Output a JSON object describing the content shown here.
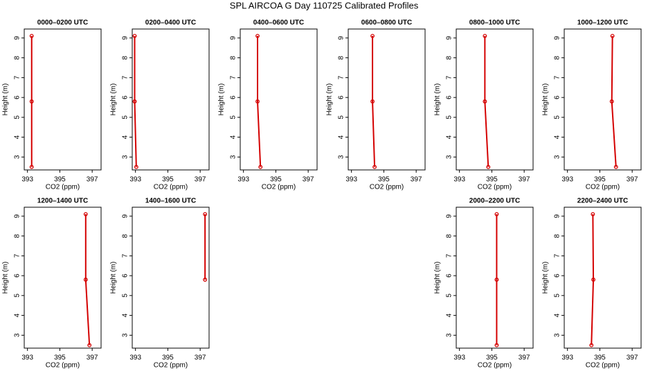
{
  "title": "SPL AIRCOA G  Day 110725  Calibrated Profiles",
  "chart_data": [
    {
      "type": "line",
      "title": "0000–0200 UTC",
      "xlabel": "CO2 (ppm)",
      "ylabel": "Height (m)",
      "x": [
        393.26,
        393.26,
        393.26
      ],
      "values": [
        9.1,
        5.8,
        2.5
      ],
      "color": "#d40000",
      "xlim": [
        392.8,
        397.55
      ],
      "ylim": [
        2.35,
        9.45
      ],
      "xticks": [
        393,
        395,
        397
      ],
      "yticks": [
        3,
        4,
        5,
        6,
        7,
        8,
        9
      ]
    },
    {
      "type": "line",
      "title": "0200–0400 UTC",
      "xlabel": "CO2 (ppm)",
      "ylabel": "Height (m)",
      "x": [
        392.95,
        392.95,
        393.05
      ],
      "values": [
        9.1,
        5.8,
        2.5
      ],
      "color": "#d40000",
      "xlim": [
        392.8,
        397.55
      ],
      "ylim": [
        2.35,
        9.45
      ],
      "xticks": [
        393,
        395,
        397
      ],
      "yticks": [
        3,
        4,
        5,
        6,
        7,
        8,
        9
      ]
    },
    {
      "type": "line",
      "title": "0400–0600 UTC",
      "xlabel": "CO2 (ppm)",
      "ylabel": "Height (m)",
      "x": [
        393.87,
        393.87,
        394.05
      ],
      "values": [
        9.1,
        5.8,
        2.5
      ],
      "color": "#d40000",
      "xlim": [
        392.8,
        397.55
      ],
      "ylim": [
        2.35,
        9.45
      ],
      "xticks": [
        393,
        395,
        397
      ],
      "yticks": [
        3,
        4,
        5,
        6,
        7,
        8,
        9
      ]
    },
    {
      "type": "line",
      "title": "0600–0800 UTC",
      "xlabel": "CO2 (ppm)",
      "ylabel": "Height (m)",
      "x": [
        394.3,
        394.3,
        394.43
      ],
      "values": [
        9.1,
        5.8,
        2.5
      ],
      "color": "#d40000",
      "xlim": [
        392.8,
        397.55
      ],
      "ylim": [
        2.35,
        9.45
      ],
      "xticks": [
        393,
        395,
        397
      ],
      "yticks": [
        3,
        4,
        5,
        6,
        7,
        8,
        9
      ]
    },
    {
      "type": "line",
      "title": "0800–1000 UTC",
      "xlabel": "CO2 (ppm)",
      "ylabel": "Height (m)",
      "x": [
        394.57,
        394.57,
        394.78
      ],
      "values": [
        9.1,
        5.8,
        2.5
      ],
      "color": "#d40000",
      "xlim": [
        392.8,
        397.55
      ],
      "ylim": [
        2.35,
        9.45
      ],
      "xticks": [
        393,
        395,
        397
      ],
      "yticks": [
        3,
        4,
        5,
        6,
        7,
        8,
        9
      ]
    },
    {
      "type": "line",
      "title": "1000–1200 UTC",
      "xlabel": "CO2 (ppm)",
      "ylabel": "Height (m)",
      "x": [
        395.78,
        395.74,
        396.0
      ],
      "values": [
        9.1,
        5.8,
        2.5
      ],
      "color": "#d40000",
      "xlim": [
        392.8,
        397.55
      ],
      "ylim": [
        2.35,
        9.45
      ],
      "xticks": [
        393,
        395,
        397
      ],
      "yticks": [
        3,
        4,
        5,
        6,
        7,
        8,
        9
      ]
    },
    {
      "type": "line",
      "title": "1200–1400 UTC",
      "xlabel": "CO2 (ppm)",
      "ylabel": "Height (m)",
      "x": [
        396.6,
        396.6,
        396.83
      ],
      "values": [
        9.1,
        5.8,
        2.5
      ],
      "color": "#d40000",
      "xlim": [
        392.8,
        397.55
      ],
      "ylim": [
        2.35,
        9.45
      ],
      "xticks": [
        393,
        395,
        397
      ],
      "yticks": [
        3,
        4,
        5,
        6,
        7,
        8,
        9
      ]
    },
    {
      "type": "line",
      "title": "1400–1600 UTC",
      "xlabel": "CO2 (ppm)",
      "ylabel": "Height (m)",
      "x": [
        397.3,
        397.3
      ],
      "values": [
        9.1,
        5.8
      ],
      "color": "#d40000",
      "xlim": [
        392.8,
        397.55
      ],
      "ylim": [
        2.35,
        9.45
      ],
      "xticks": [
        393,
        395,
        397
      ],
      "yticks": [
        3,
        4,
        5,
        6,
        7,
        8,
        9
      ]
    },
    {
      "type": "line",
      "title": "2000–2200 UTC",
      "xlabel": "CO2 (ppm)",
      "ylabel": "Height (m)",
      "x": [
        395.3,
        395.3,
        395.3
      ],
      "values": [
        9.1,
        5.8,
        2.5
      ],
      "color": "#d40000",
      "xlim": [
        392.8,
        397.55
      ],
      "ylim": [
        2.35,
        9.45
      ],
      "xticks": [
        393,
        395,
        397
      ],
      "yticks": [
        3,
        4,
        5,
        6,
        7,
        8,
        9
      ]
    },
    {
      "type": "line",
      "title": "2200–2400 UTC",
      "xlabel": "CO2 (ppm)",
      "ylabel": "Height (m)",
      "x": [
        394.57,
        394.6,
        394.48
      ],
      "values": [
        9.1,
        5.8,
        2.5
      ],
      "color": "#d40000",
      "xlim": [
        392.8,
        397.55
      ],
      "ylim": [
        2.35,
        9.45
      ],
      "xticks": [
        393,
        395,
        397
      ],
      "yticks": [
        3,
        4,
        5,
        6,
        7,
        8,
        9
      ]
    }
  ]
}
